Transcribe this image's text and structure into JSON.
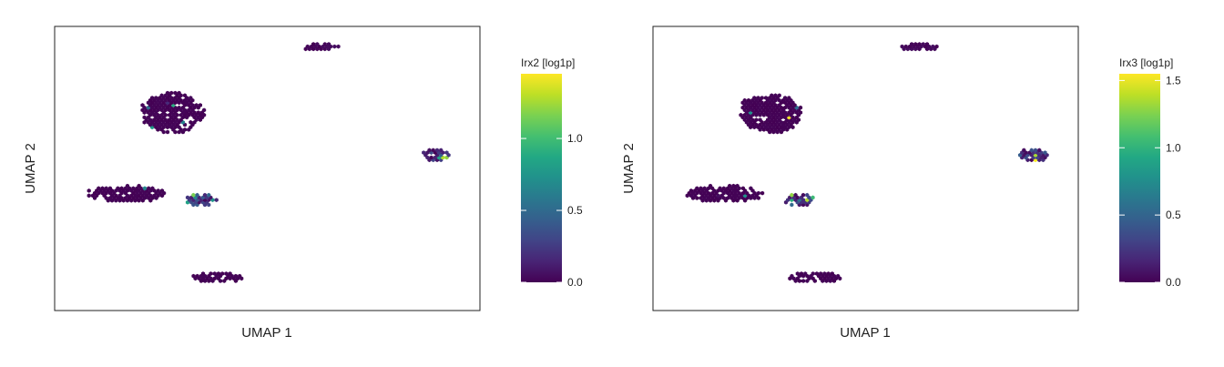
{
  "chart_data": [
    {
      "type": "scatter",
      "subtype": "hexbin-embedding",
      "xlabel": "UMAP 1",
      "ylabel": "UMAP 2",
      "grid": false,
      "colormap": "viridis",
      "colorbar": {
        "title": "Irx2 [log1p]",
        "range": [
          0,
          1.45
        ],
        "ticks": [
          0.0,
          0.5,
          1.0
        ],
        "tick_labels": [
          "0.0",
          "0.5",
          "1.0"
        ]
      },
      "clusters": [
        {
          "name": "upper-large",
          "center": [
            -4.2,
            4.2
          ],
          "spread": [
            1.5,
            1.3
          ],
          "level": 0.02
        },
        {
          "name": "top-small",
          "center": [
            3.1,
            8.6
          ],
          "spread": [
            0.9,
            0.25
          ],
          "level": 0.05
        },
        {
          "name": "right",
          "center": [
            8.8,
            1.4
          ],
          "spread": [
            0.7,
            0.45
          ],
          "level": 0.35
        },
        {
          "name": "left-elongated",
          "center": [
            -6.5,
            -1.2
          ],
          "spread": [
            1.9,
            0.55
          ],
          "level": 0.02
        },
        {
          "name": "left-right-lobe",
          "center": [
            -2.8,
            -1.6
          ],
          "spread": [
            0.75,
            0.45
          ],
          "level": 0.45
        },
        {
          "name": "bottom",
          "center": [
            -2.0,
            -6.8
          ],
          "spread": [
            1.3,
            0.35
          ],
          "level": 0.02
        }
      ]
    },
    {
      "type": "scatter",
      "subtype": "hexbin-embedding",
      "xlabel": "UMAP 1",
      "ylabel": "UMAP 2",
      "grid": false,
      "colormap": "viridis",
      "colorbar": {
        "title": "Irx3 [log1p]",
        "range": [
          0,
          1.55
        ],
        "ticks": [
          0.0,
          0.5,
          1.0,
          1.5
        ],
        "tick_labels": [
          "0.0",
          "0.5",
          "1.0",
          "1.5"
        ]
      },
      "clusters": [
        {
          "name": "upper-large",
          "center": [
            -4.2,
            4.2
          ],
          "spread": [
            1.5,
            1.3
          ],
          "level": 0.02
        },
        {
          "name": "top-small",
          "center": [
            3.1,
            8.6
          ],
          "spread": [
            0.9,
            0.25
          ],
          "level": 0.05
        },
        {
          "name": "right",
          "center": [
            8.8,
            1.4
          ],
          "spread": [
            0.7,
            0.45
          ],
          "level": 0.4
        },
        {
          "name": "left-elongated",
          "center": [
            -6.5,
            -1.2
          ],
          "spread": [
            1.9,
            0.55
          ],
          "level": 0.02
        },
        {
          "name": "left-right-lobe",
          "center": [
            -2.8,
            -1.6
          ],
          "spread": [
            0.75,
            0.45
          ],
          "level": 0.4
        },
        {
          "name": "bottom",
          "center": [
            -2.0,
            -6.8
          ],
          "spread": [
            1.3,
            0.35
          ],
          "level": 0.02
        }
      ],
      "xlim": [
        -10,
        11
      ],
      "ylim": [
        -9,
        10
      ]
    }
  ]
}
